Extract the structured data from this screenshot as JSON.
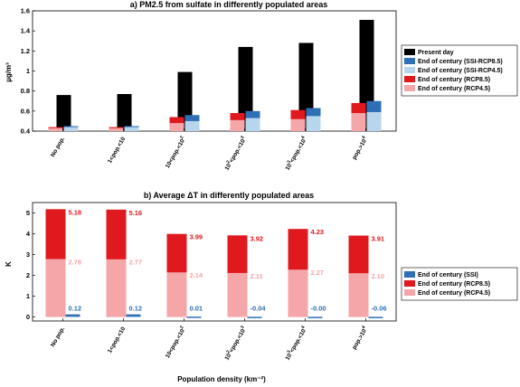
{
  "chart_data": [
    {
      "type": "bar",
      "title": "a) PM2.5 from sulfate in differently populated areas",
      "ylabel": "µg/m³",
      "ylim": [
        0.4,
        1.6
      ],
      "yticks": [
        "0.4",
        "0.6",
        "0.8",
        "1",
        "1.2",
        "1.4",
        "1.6"
      ],
      "categories": [
        "No pop.",
        "1<pop.<10",
        "10<pop.<10^2",
        "10^2<pop.<10^3",
        "10^3<pop.<10^4",
        "pop.>10^4"
      ],
      "series": [
        {
          "name": "Present day",
          "color": "#000000",
          "values": [
            0.76,
            0.77,
            0.99,
            1.24,
            1.28,
            1.51
          ]
        },
        {
          "name": "End of century (SSI-RCP8.5)",
          "color": "#2f6fb6",
          "values": [
            0.45,
            0.45,
            0.56,
            0.6,
            0.63,
            0.7
          ]
        },
        {
          "name": "End of century (SSI-RCP4.5)",
          "color": "#b8d5ee",
          "values": [
            0.44,
            0.44,
            0.5,
            0.53,
            0.55,
            0.59
          ]
        },
        {
          "name": "End of century (RCP8.5)",
          "color": "#e0191f",
          "values": [
            0.44,
            0.44,
            0.54,
            0.58,
            0.61,
            0.68
          ]
        },
        {
          "name": "End of century (RCP4.5)",
          "color": "#f4a6a8",
          "values": [
            0.43,
            0.43,
            0.48,
            0.51,
            0.52,
            0.58
          ]
        }
      ],
      "legend": "right"
    },
    {
      "type": "bar",
      "title": "b) Average ΔT in differently populated areas",
      "ylabel": "K",
      "xlabel": "Population density (km⁻²)",
      "ylim": [
        -0.2,
        5.5
      ],
      "yticks": [
        "0",
        "1",
        "2",
        "3",
        "4",
        "5"
      ],
      "categories": [
        "No pop.",
        "1<pop.<10",
        "10<pop.<10^2",
        "10^2<pop.<10^3",
        "10^3<pop.<10^4",
        "pop.>10^4"
      ],
      "series": [
        {
          "name": "End of century (SSI)",
          "color": "#2f6fb6",
          "values": [
            0.12,
            0.12,
            0.01,
            -0.04,
            -0.0,
            -0.06
          ],
          "labels": [
            "0.12",
            "0.12",
            "0.01",
            "-0.04",
            "-0.00",
            "-0.06"
          ]
        },
        {
          "name": "End of century (RCP8.5)",
          "color": "#e0191f",
          "values": [
            5.18,
            5.16,
            3.99,
            3.92,
            4.23,
            3.91
          ],
          "labels": [
            "5.18",
            "5.16",
            "3.99",
            "3.92",
            "4.23",
            "3.91"
          ]
        },
        {
          "name": "End of century (RCP4.5)",
          "color": "#f4a6a8",
          "values": [
            2.78,
            2.77,
            2.14,
            2.11,
            2.27,
            2.1
          ],
          "labels": [
            "2.78",
            "2.77",
            "2.14",
            "2.11",
            "2.27",
            "2.10"
          ]
        }
      ],
      "label_colors": {
        "ssi": "#2f6fb6",
        "rcp85": "#e0191f",
        "rcp45": "#f4a6a8"
      },
      "legend": "right"
    }
  ]
}
